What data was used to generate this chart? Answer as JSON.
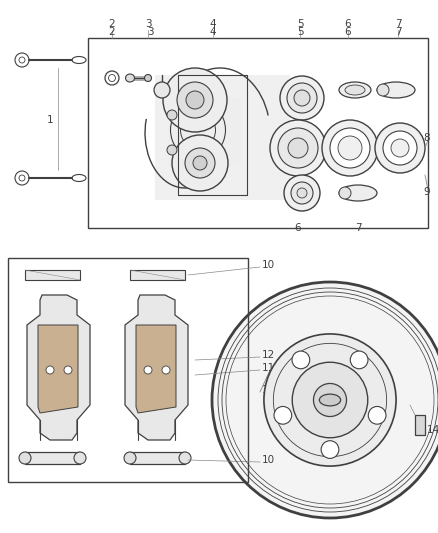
{
  "bg_color": "#ffffff",
  "lc": "#404040",
  "lc_light": "#888888",
  "fig_w": 4.38,
  "fig_h": 5.33,
  "dpi": 100
}
